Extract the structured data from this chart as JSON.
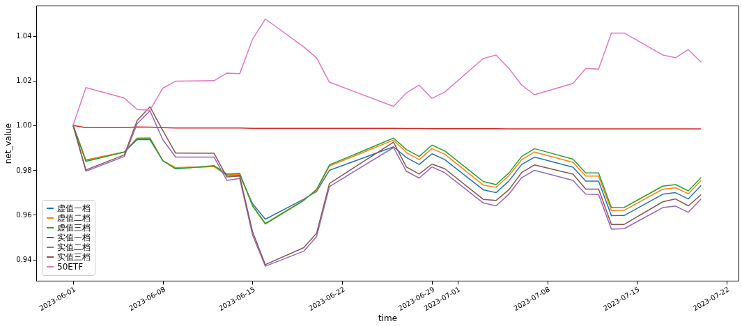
{
  "chart_data": {
    "type": "line",
    "xlabel": "time",
    "ylabel": "net_value",
    "legend": "bottom left",
    "grid": false,
    "x": [
      "2023-06-01",
      "2023-06-02",
      "2023-06-05",
      "2023-06-06",
      "2023-06-07",
      "2023-06-08",
      "2023-06-09",
      "2023-06-12",
      "2023-06-13",
      "2023-06-14",
      "2023-06-15",
      "2023-06-16",
      "2023-06-19",
      "2023-06-20",
      "2023-06-21",
      "2023-06-26",
      "2023-06-27",
      "2023-06-28",
      "2023-06-29",
      "2023-06-30",
      "2023-07-03",
      "2023-07-04",
      "2023-07-05",
      "2023-07-06",
      "2023-07-07",
      "2023-07-10",
      "2023-07-11",
      "2023-07-12",
      "2023-07-13",
      "2023-07-14",
      "2023-07-17",
      "2023-07-18",
      "2023-07-19",
      "2023-07-20"
    ],
    "xlim": [
      "2023-05-29T03:00",
      "2023-07-22T22:00"
    ],
    "xticks": [
      "2023-06-01",
      "2023-06-08",
      "2023-06-15",
      "2023-06-22",
      "2023-06-29",
      "2023-07-01",
      "2023-07-08",
      "2023-07-15",
      "2023-07-22"
    ],
    "ylim": [
      0.9305,
      1.0536
    ],
    "yticks": [
      0.94,
      0.96,
      0.98,
      {
        "value": 1.0,
        "label": "1.00"
      },
      1.02,
      1.04
    ],
    "series": [
      {
        "name": "虚值一档",
        "color": "#1f77b4",
        "values": [
          1.0,
          0.9844,
          0.9881,
          0.9936,
          0.9936,
          0.9842,
          0.9809,
          0.9816,
          0.9777,
          0.9777,
          0.965,
          0.958,
          0.967,
          0.9704,
          0.9799,
          0.9904,
          0.9856,
          0.9825,
          0.9873,
          0.9847,
          0.9712,
          0.9699,
          0.9751,
          0.9825,
          0.9858,
          0.9813,
          0.9751,
          0.9751,
          0.9596,
          0.9597,
          0.9692,
          0.9699,
          0.9671,
          0.9731
        ]
      },
      {
        "name": "虚值二档",
        "color": "#ff7f0e",
        "values": [
          1.0,
          0.9846,
          0.9881,
          0.9943,
          0.9944,
          0.9842,
          0.9811,
          0.9816,
          0.978,
          0.9782,
          0.9642,
          0.9562,
          0.9666,
          0.971,
          0.9818,
          0.9934,
          0.9879,
          0.9847,
          0.9896,
          0.9871,
          0.9733,
          0.9723,
          0.9775,
          0.9847,
          0.9881,
          0.9835,
          0.9773,
          0.9773,
          0.9619,
          0.962,
          0.9714,
          0.9721,
          0.9694,
          0.9754
        ]
      },
      {
        "name": "虚值三档",
        "color": "#2ca02c",
        "values": [
          1.0,
          0.9839,
          0.9881,
          0.9941,
          0.9941,
          0.9842,
          0.9805,
          0.982,
          0.9782,
          0.9786,
          0.964,
          0.9559,
          0.9664,
          0.9714,
          0.9823,
          0.9943,
          0.9892,
          0.9861,
          0.9912,
          0.9886,
          0.9749,
          0.9735,
          0.9787,
          0.9861,
          0.9896,
          0.9849,
          0.9787,
          0.9787,
          0.9632,
          0.9633,
          0.9728,
          0.9735,
          0.9707,
          0.9767
        ]
      },
      {
        "name": "实值一档",
        "color": "#d62728",
        "values": [
          1.0,
          0.999,
          0.999,
          0.9993,
          0.9992,
          0.999,
          0.9988,
          0.9988,
          0.9988,
          0.9988,
          0.9987,
          0.9987,
          0.9987,
          0.9987,
          0.9987,
          0.9987,
          0.9986,
          0.9986,
          0.9985,
          0.9985,
          0.9985,
          0.9985,
          0.9984,
          0.9984,
          0.9984,
          0.9984,
          0.9984,
          0.9984,
          0.9984,
          0.9984,
          0.9984,
          0.9984,
          0.9984,
          0.9984
        ]
      },
      {
        "name": "实值二档",
        "color": "#9467bd",
        "values": [
          1.0,
          0.9795,
          0.9861,
          1.0008,
          1.0065,
          0.9936,
          0.9858,
          0.9858,
          0.9754,
          0.9762,
          0.951,
          0.937,
          0.9437,
          0.9503,
          0.9726,
          0.9901,
          0.9795,
          0.9764,
          0.9814,
          0.9788,
          0.9653,
          0.964,
          0.9692,
          0.9766,
          0.9799,
          0.9754,
          0.9692,
          0.9691,
          0.9536,
          0.9538,
          0.9632,
          0.9639,
          0.9611,
          0.9671
        ]
      },
      {
        "name": "实值三档",
        "color": "#8c564b",
        "values": [
          1.0,
          0.9801,
          0.9868,
          1.0022,
          1.0083,
          0.9977,
          0.9876,
          0.9875,
          0.9769,
          0.9773,
          0.9525,
          0.9377,
          0.9453,
          0.9518,
          0.974,
          0.9925,
          0.9814,
          0.9782,
          0.9827,
          0.9806,
          0.9669,
          0.9664,
          0.9712,
          0.9789,
          0.9823,
          0.9782,
          0.9715,
          0.9715,
          0.9557,
          0.9557,
          0.9658,
          0.9671,
          0.964,
          0.969
        ]
      },
      {
        "name": "50ETF",
        "color": "#e377c2",
        "values": [
          1.0,
          1.0169,
          1.0122,
          1.0071,
          1.0068,
          1.0166,
          1.0198,
          1.02,
          1.0234,
          1.0231,
          1.0385,
          1.0476,
          1.0351,
          1.0302,
          1.0193,
          1.0085,
          1.0145,
          1.018,
          1.0121,
          1.0149,
          1.0299,
          1.0315,
          1.0255,
          1.018,
          1.0137,
          1.0188,
          1.0255,
          1.0252,
          1.0413,
          1.0413,
          1.0315,
          1.0303,
          1.0339,
          1.0283
        ]
      }
    ]
  }
}
